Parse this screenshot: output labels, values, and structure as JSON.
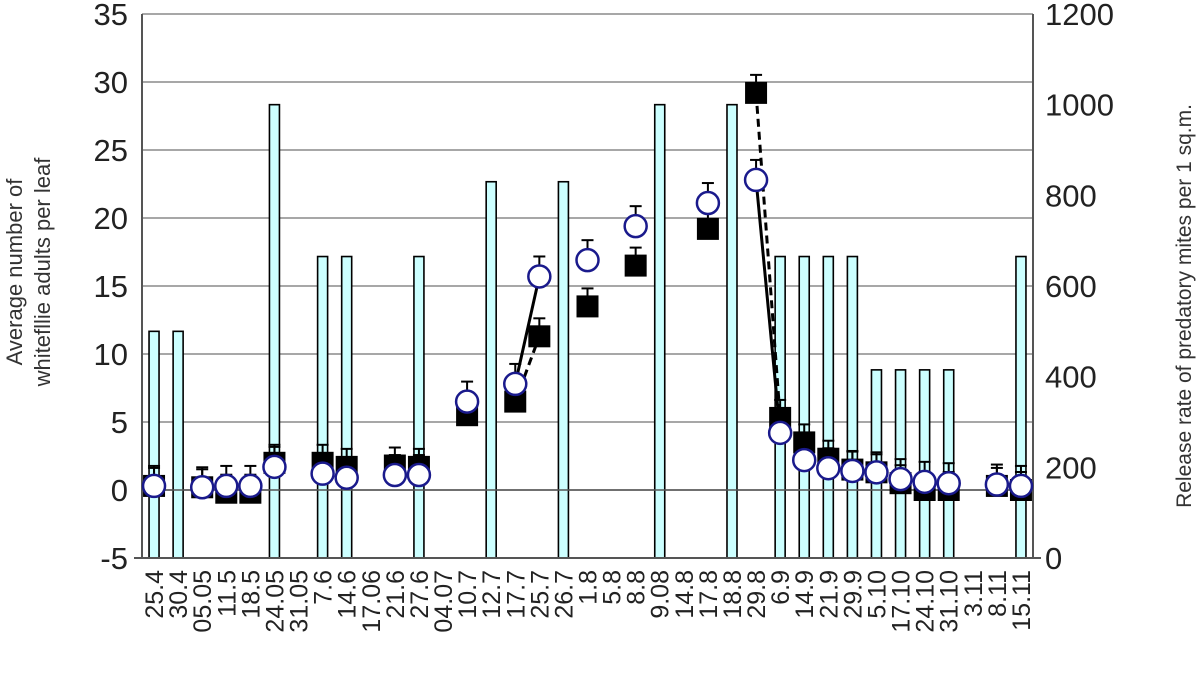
{
  "chart_data": {
    "type": "bar+line",
    "categories": [
      "25.4",
      "30.4",
      "05.05",
      "11.5",
      "18.5",
      "24.05",
      "31.05",
      "7.6",
      "14.6",
      "17.06",
      "21.6",
      "27.6",
      "04.07",
      "10.7",
      "12.7",
      "17.7",
      "25.7",
      "26.7",
      "1.8",
      "5.8",
      "8.8",
      "9.08",
      "14.8",
      "17.8",
      "18.8",
      "29.8",
      "6.9",
      "14.9",
      "21.9",
      "29.9",
      "5.10",
      "17.10",
      "24.10",
      "31.10",
      "3.11",
      "8.11",
      "15.11"
    ],
    "ylabel": "Average number of\nwhitefllie adults per leaf",
    "y2label": "Release rate of predatory mites per 1 sq.m.",
    "ylim": [
      -5,
      35
    ],
    "y_ticks": [
      "-5",
      "0",
      "5",
      "10",
      "15",
      "20",
      "25",
      "30",
      "35"
    ],
    "y2lim": [
      0,
      1200
    ],
    "y2_ticks": [
      "0",
      "200",
      "400",
      "600",
      "800",
      "1000",
      "1200"
    ],
    "grid": true,
    "bars": {
      "name": "release rate",
      "color": "#ccffff",
      "values": [
        {
          "x": "25.4",
          "v": 500
        },
        {
          "x": "30.4",
          "v": 500
        },
        {
          "x": "24.05",
          "v": 1000
        },
        {
          "x": "7.6",
          "v": 665
        },
        {
          "x": "14.6",
          "v": 665
        },
        {
          "x": "27.6",
          "v": 665
        },
        {
          "x": "12.7",
          "v": 830
        },
        {
          "x": "26.7",
          "v": 830
        },
        {
          "x": "9.08",
          "v": 1000
        },
        {
          "x": "18.8",
          "v": 1000
        },
        {
          "x": "6.9",
          "v": 665
        },
        {
          "x": "14.9",
          "v": 665
        },
        {
          "x": "21.9",
          "v": 665
        },
        {
          "x": "29.9",
          "v": 665
        },
        {
          "x": "5.10",
          "v": 415
        },
        {
          "x": "17.10",
          "v": 415
        },
        {
          "x": "24.10",
          "v": 415
        },
        {
          "x": "31.10",
          "v": 415
        },
        {
          "x": "15.11",
          "v": 665
        }
      ]
    },
    "series": [
      {
        "marker": "square",
        "color": "#000000",
        "line": "dashed",
        "points": [
          {
            "x": "25.4",
            "y": 0.3
          },
          {
            "x": "05.05",
            "y": 0.2
          },
          {
            "x": "11.5",
            "y": -0.2
          },
          {
            "x": "18.5",
            "y": -0.2
          },
          {
            "x": "24.05",
            "y": 2.0
          },
          {
            "x": "7.6",
            "y": 2.0
          },
          {
            "x": "14.6",
            "y": 1.7
          },
          {
            "x": "21.6",
            "y": 1.8
          },
          {
            "x": "27.6",
            "y": 1.7
          },
          {
            "x": "10.7",
            "y": 5.5
          },
          {
            "x": "17.7",
            "y": 6.5
          },
          {
            "x": "25.7",
            "y": 11.3
          },
          {
            "x": "1.8",
            "y": 13.5
          },
          {
            "x": "8.8",
            "y": 16.5
          },
          {
            "x": "17.8",
            "y": 19.2
          },
          {
            "x": "29.8",
            "y": 29.2
          },
          {
            "x": "6.9",
            "y": 5.3
          },
          {
            "x": "14.9",
            "y": 3.5
          },
          {
            "x": "21.9",
            "y": 2.3
          },
          {
            "x": "29.9",
            "y": 1.5
          },
          {
            "x": "5.10",
            "y": 1.3
          },
          {
            "x": "17.10",
            "y": 0.5
          },
          {
            "x": "24.10",
            "y": 0.0
          },
          {
            "x": "31.10",
            "y": 0.0
          },
          {
            "x": "8.11",
            "y": 0.3
          },
          {
            "x": "15.11",
            "y": 0.0
          }
        ]
      },
      {
        "marker": "circle",
        "color": "#1a1a8c",
        "line": "solid",
        "points": [
          {
            "x": "25.4",
            "y": 0.3
          },
          {
            "x": "05.05",
            "y": 0.2
          },
          {
            "x": "11.5",
            "y": 0.3
          },
          {
            "x": "18.5",
            "y": 0.3
          },
          {
            "x": "24.05",
            "y": 1.7
          },
          {
            "x": "7.6",
            "y": 1.2
          },
          {
            "x": "14.6",
            "y": 0.9
          },
          {
            "x": "21.6",
            "y": 1.1
          },
          {
            "x": "27.6",
            "y": 1.1
          },
          {
            "x": "10.7",
            "y": 6.5
          },
          {
            "x": "17.7",
            "y": 7.8
          },
          {
            "x": "25.7",
            "y": 15.7
          },
          {
            "x": "1.8",
            "y": 16.9
          },
          {
            "x": "8.8",
            "y": 19.4
          },
          {
            "x": "17.8",
            "y": 21.1
          },
          {
            "x": "29.8",
            "y": 22.8
          },
          {
            "x": "6.9",
            "y": 4.2
          },
          {
            "x": "14.9",
            "y": 2.2
          },
          {
            "x": "21.9",
            "y": 1.6
          },
          {
            "x": "29.9",
            "y": 1.4
          },
          {
            "x": "5.10",
            "y": 1.3
          },
          {
            "x": "17.10",
            "y": 0.8
          },
          {
            "x": "24.10",
            "y": 0.6
          },
          {
            "x": "31.10",
            "y": 0.5
          },
          {
            "x": "8.11",
            "y": 0.4
          },
          {
            "x": "15.11",
            "y": 0.3
          }
        ],
        "error_up": 0.8
      }
    ],
    "segments": [
      {
        "series": 0,
        "from": "17.7",
        "to": "25.7"
      },
      {
        "series": 1,
        "from": "17.7",
        "to": "25.7"
      },
      {
        "series": 0,
        "from": "29.8",
        "to": "6.9"
      },
      {
        "series": 1,
        "from": "29.8",
        "to": "6.9"
      }
    ]
  }
}
